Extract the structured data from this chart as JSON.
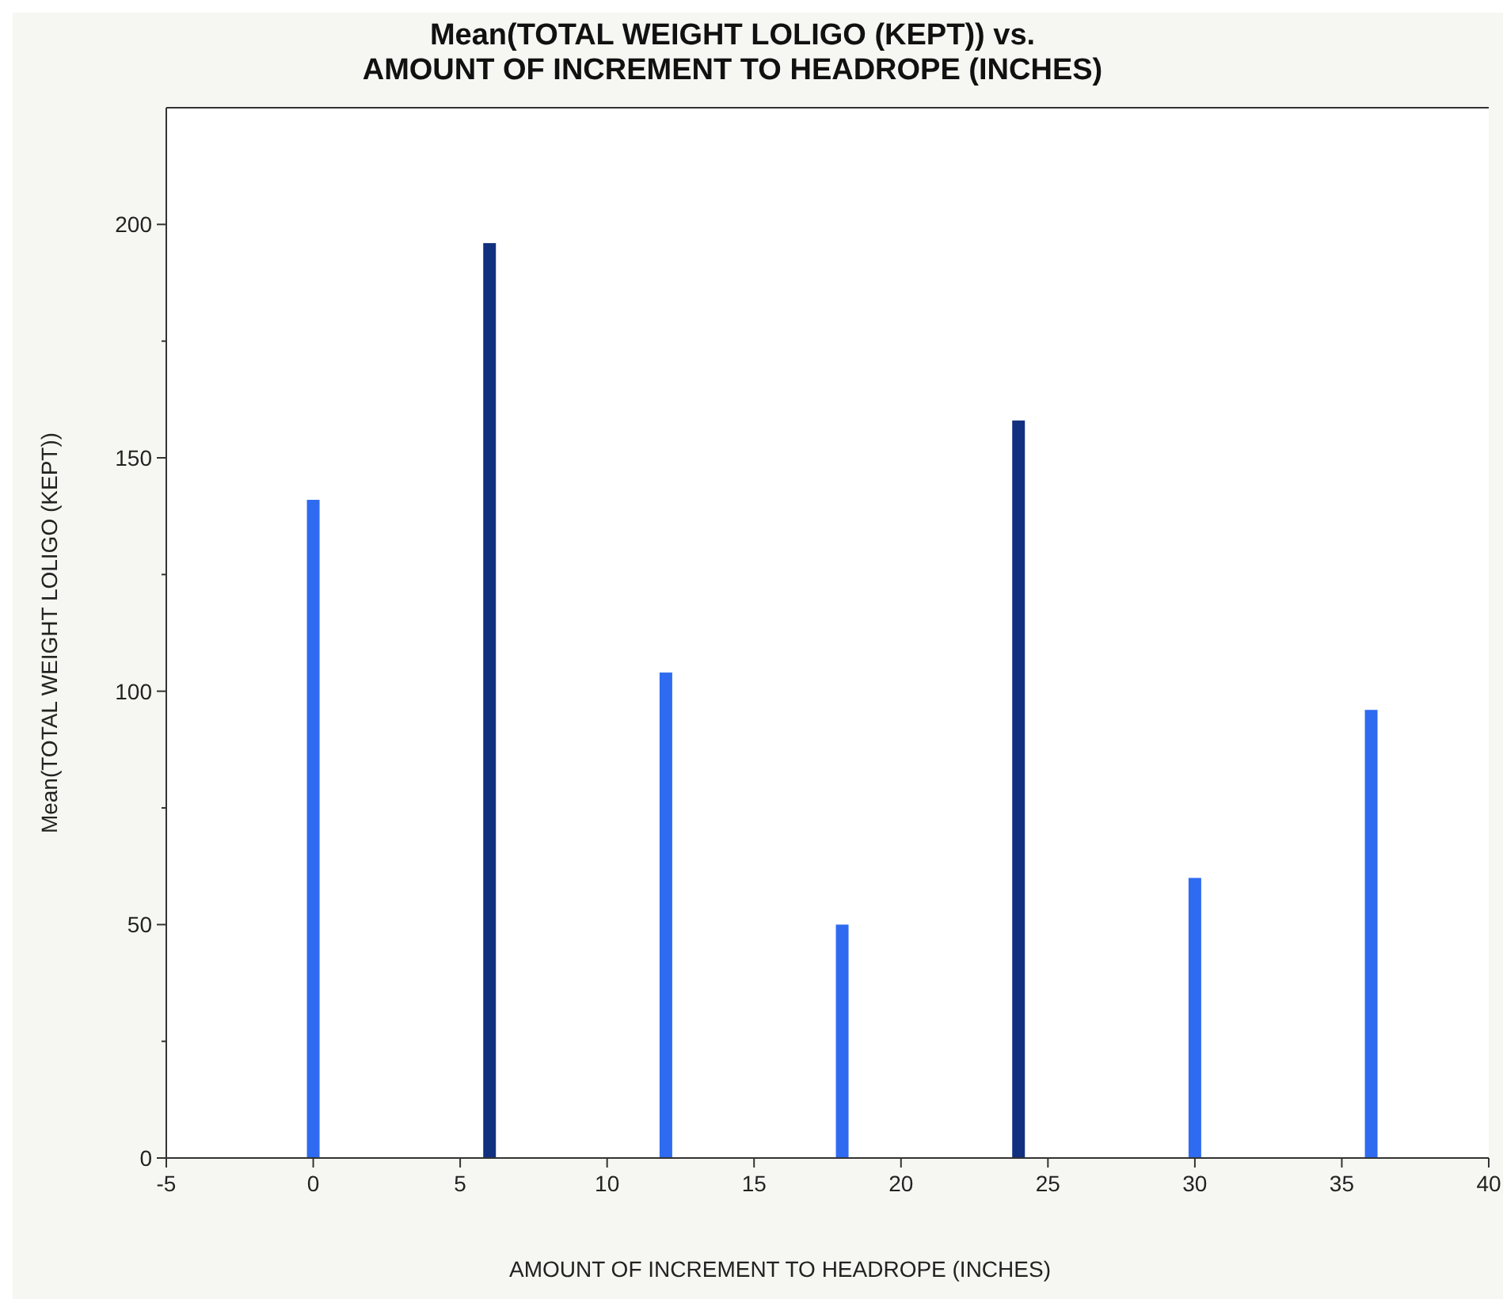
{
  "chart_data": {
    "type": "bar",
    "title": "Mean(TOTAL WEIGHT LOLIGO (KEPT)) vs.\nAMOUNT OF INCREMENT TO HEADROPE (INCHES)",
    "xlabel": "AMOUNT OF INCREMENT TO HEADROPE (INCHES)",
    "ylabel": "Mean(TOTAL WEIGHT LOLIGO (KEPT))",
    "x": [
      0,
      6,
      12,
      18,
      24,
      30,
      36
    ],
    "values": [
      141,
      196,
      104,
      50,
      158,
      60,
      96
    ],
    "colors": [
      "#2f6bf0",
      "#11307f",
      "#2f6bf0",
      "#2f6bf0",
      "#11307f",
      "#2f6bf0",
      "#2f6bf0"
    ],
    "xlim": [
      -5,
      40
    ],
    "xticks": [
      -5,
      0,
      5,
      10,
      15,
      20,
      25,
      30,
      35,
      40
    ],
    "ylim": [
      0,
      225
    ],
    "yticks": [
      0,
      {
        "value": 25,
        "label": null
      },
      50,
      {
        "value": 75,
        "label": null
      },
      100,
      {
        "value": 125,
        "label": null
      },
      150,
      {
        "value": 175,
        "label": null
      },
      200
    ],
    "grid": false
  }
}
